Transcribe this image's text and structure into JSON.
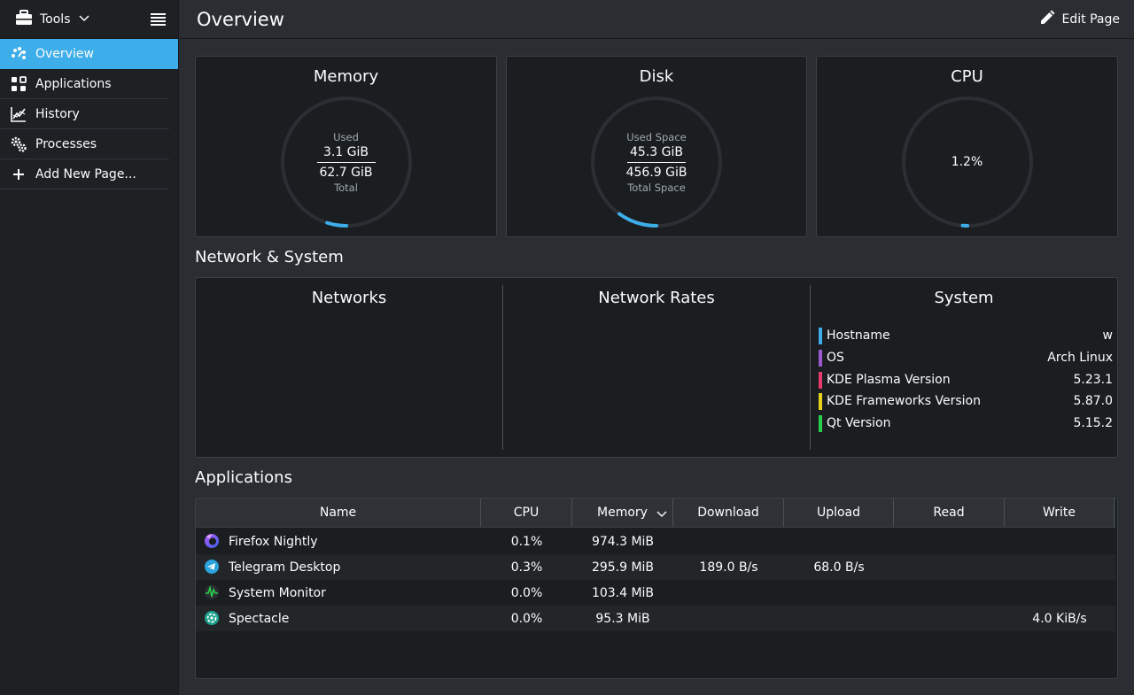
{
  "sidebar": {
    "tools_label": "Tools",
    "items": [
      {
        "label": "Overview",
        "icon": "overview-icon"
      },
      {
        "label": "Applications",
        "icon": "applications-icon"
      },
      {
        "label": "History",
        "icon": "history-icon"
      },
      {
        "label": "Processes",
        "icon": "processes-icon"
      },
      {
        "label": "Add New Page...",
        "icon": "plus-icon"
      }
    ]
  },
  "header": {
    "title": "Overview",
    "edit_label": "Edit Page"
  },
  "cards": {
    "memory": {
      "title": "Memory",
      "top_label": "Used",
      "value": "3.1 GiB",
      "total": "62.7 GiB",
      "bottom_label": "Total",
      "fraction": 0.049
    },
    "disk": {
      "title": "Disk",
      "top_label": "Used Space",
      "value": "45.3 GiB",
      "total": "456.9 GiB",
      "bottom_label": "Total Space",
      "fraction": 0.099
    },
    "cpu": {
      "title": "CPU",
      "value": "1.2%",
      "fraction": 0.012
    }
  },
  "network_system": {
    "section_title": "Network & System",
    "networks_title": "Networks",
    "rates_title": "Network Rates",
    "system_title": "System",
    "system_rows": [
      {
        "label": "Hostname",
        "value": "w",
        "color": "#3daee9"
      },
      {
        "label": "OS",
        "value": "Arch Linux",
        "color": "#9b59d0"
      },
      {
        "label": "KDE Plasma Version",
        "value": "5.23.1",
        "color": "#e93a6f"
      },
      {
        "label": "KDE Frameworks Version",
        "value": "5.87.0",
        "color": "#e6d11d"
      },
      {
        "label": "Qt Version",
        "value": "5.15.2",
        "color": "#27d04a"
      }
    ]
  },
  "applications": {
    "section_title": "Applications",
    "columns": [
      "Name",
      "CPU",
      "Memory",
      "Download",
      "Upload",
      "Read",
      "Write"
    ],
    "rows": [
      {
        "name": "Firefox Nightly",
        "cpu": "0.1%",
        "memory": "974.3 MiB",
        "download": "",
        "upload": "",
        "read": "",
        "write": "",
        "icon": "firefox-nightly-icon"
      },
      {
        "name": "Telegram Desktop",
        "cpu": "0.3%",
        "memory": "295.9 MiB",
        "download": "189.0 B/s",
        "upload": "68.0 B/s",
        "read": "",
        "write": "",
        "icon": "telegram-icon"
      },
      {
        "name": "System Monitor",
        "cpu": "0.0%",
        "memory": "103.4 MiB",
        "download": "",
        "upload": "",
        "read": "",
        "write": "",
        "icon": "system-monitor-icon"
      },
      {
        "name": "Spectacle",
        "cpu": "0.0%",
        "memory": "95.3 MiB",
        "download": "",
        "upload": "",
        "read": "",
        "write": "4.0 KiB/s",
        "icon": "spectacle-icon"
      }
    ]
  },
  "colors": {
    "accent": "#3daee9",
    "background": "#2a2e32",
    "card": "#1b1e20"
  }
}
